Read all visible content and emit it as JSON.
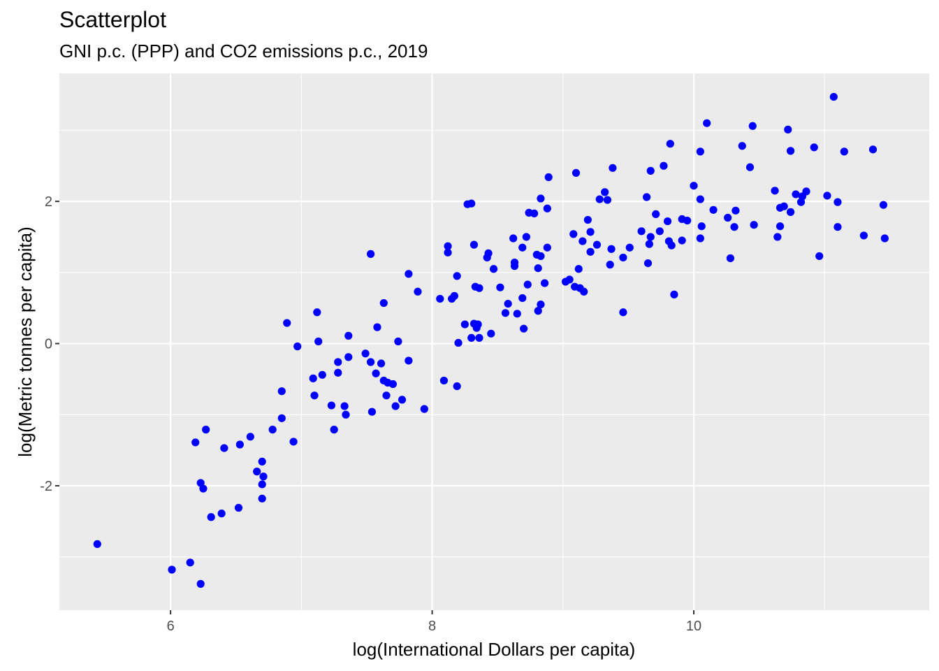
{
  "chart_data": {
    "type": "scatter",
    "title": "Scatterplot",
    "subtitle": "GNI p.c. (PPP) and CO2 emissions p.c., 2019",
    "xlabel": "log(International Dollars per capita)",
    "ylabel": "log(Metric tonnes per capita)",
    "xlim": [
      5.15,
      11.8
    ],
    "ylim": [
      -3.75,
      3.8
    ],
    "x_ticks": [
      6,
      8,
      10
    ],
    "x_tick_labels": [
      "6",
      "8",
      "10"
    ],
    "y_ticks": [
      -2,
      0,
      2
    ],
    "y_tick_labels": [
      "-2",
      "0",
      "2"
    ],
    "grid": true,
    "legend": "none",
    "panel_color": "#ebebeb",
    "grid_color": "#ffffff",
    "point_color": "#0000ff",
    "points": [
      [
        5.44,
        -2.82
      ],
      [
        6.01,
        -3.18
      ],
      [
        6.15,
        -3.08
      ],
      [
        6.23,
        -3.38
      ],
      [
        6.19,
        -1.39
      ],
      [
        6.23,
        -1.96
      ],
      [
        6.25,
        -2.04
      ],
      [
        6.27,
        -1.21
      ],
      [
        6.31,
        -2.44
      ],
      [
        6.39,
        -2.39
      ],
      [
        6.41,
        -1.47
      ],
      [
        6.52,
        -2.31
      ],
      [
        6.53,
        -1.42
      ],
      [
        6.61,
        -1.31
      ],
      [
        6.66,
        -1.8
      ],
      [
        6.7,
        -1.66
      ],
      [
        6.7,
        -1.98
      ],
      [
        6.71,
        -1.87
      ],
      [
        6.7,
        -2.18
      ],
      [
        6.78,
        -1.21
      ],
      [
        6.85,
        -1.05
      ],
      [
        6.85,
        -0.67
      ],
      [
        6.89,
        0.29
      ],
      [
        6.94,
        -1.38
      ],
      [
        6.97,
        -0.04
      ],
      [
        7.09,
        -0.49
      ],
      [
        7.1,
        -0.73
      ],
      [
        7.12,
        0.44
      ],
      [
        7.13,
        0.03
      ],
      [
        7.16,
        -0.44
      ],
      [
        7.23,
        -0.87
      ],
      [
        7.25,
        -1.21
      ],
      [
        7.28,
        -0.26
      ],
      [
        7.28,
        -0.41
      ],
      [
        7.33,
        -0.88
      ],
      [
        7.34,
        -1.0
      ],
      [
        7.36,
        0.11
      ],
      [
        7.36,
        -0.19
      ],
      [
        7.49,
        -0.14
      ],
      [
        7.53,
        -0.26
      ],
      [
        7.54,
        -0.96
      ],
      [
        7.53,
        1.26
      ],
      [
        7.58,
        0.23
      ],
      [
        7.57,
        -0.42
      ],
      [
        7.61,
        -0.28
      ],
      [
        7.63,
        -0.52
      ],
      [
        7.63,
        0.57
      ],
      [
        7.65,
        -0.73
      ],
      [
        7.66,
        -0.55
      ],
      [
        7.7,
        -0.57
      ],
      [
        7.72,
        -0.88
      ],
      [
        7.74,
        0.03
      ],
      [
        7.77,
        -0.79
      ],
      [
        7.82,
        0.98
      ],
      [
        7.82,
        -0.24
      ],
      [
        7.89,
        0.73
      ],
      [
        7.94,
        -0.92
      ],
      [
        8.06,
        0.63
      ],
      [
        8.09,
        -0.52
      ],
      [
        8.12,
        1.37
      ],
      [
        8.12,
        1.28
      ],
      [
        8.15,
        0.63
      ],
      [
        8.17,
        0.67
      ],
      [
        8.19,
        0.95
      ],
      [
        8.19,
        -0.6
      ],
      [
        8.2,
        0.01
      ],
      [
        8.25,
        0.27
      ],
      [
        8.27,
        1.96
      ],
      [
        8.3,
        0.08
      ],
      [
        8.3,
        1.97
      ],
      [
        8.32,
        0.28
      ],
      [
        8.32,
        1.39
      ],
      [
        8.33,
        0.8
      ],
      [
        8.34,
        0.22
      ],
      [
        8.35,
        0.27
      ],
      [
        8.36,
        0.08
      ],
      [
        8.36,
        0.78
      ],
      [
        8.42,
        1.21
      ],
      [
        8.43,
        1.27
      ],
      [
        8.45,
        0.14
      ],
      [
        8.47,
        1.05
      ],
      [
        8.52,
        0.79
      ],
      [
        8.56,
        0.43
      ],
      [
        8.58,
        0.56
      ],
      [
        8.62,
        1.48
      ],
      [
        8.63,
        1.14
      ],
      [
        8.63,
        1.09
      ],
      [
        8.65,
        0.42
      ],
      [
        8.69,
        1.35
      ],
      [
        8.69,
        0.64
      ],
      [
        8.7,
        0.21
      ],
      [
        8.72,
        1.5
      ],
      [
        8.73,
        0.83
      ],
      [
        8.74,
        1.84
      ],
      [
        8.78,
        1.83
      ],
      [
        8.8,
        1.25
      ],
      [
        8.81,
        1.06
      ],
      [
        8.81,
        0.46
      ],
      [
        8.83,
        1.23
      ],
      [
        8.83,
        0.55
      ],
      [
        8.83,
        2.04
      ],
      [
        8.86,
        0.85
      ],
      [
        8.88,
        1.35
      ],
      [
        8.88,
        1.9
      ],
      [
        8.89,
        2.34
      ],
      [
        9.02,
        0.87
      ],
      [
        9.05,
        0.9
      ],
      [
        9.08,
        1.54
      ],
      [
        9.09,
        0.8
      ],
      [
        9.1,
        2.4
      ],
      [
        9.12,
        1.05
      ],
      [
        9.13,
        0.78
      ],
      [
        9.15,
        1.44
      ],
      [
        9.16,
        0.73
      ],
      [
        9.19,
        1.74
      ],
      [
        9.21,
        1.57
      ],
      [
        9.21,
        1.29
      ],
      [
        9.26,
        1.39
      ],
      [
        9.28,
        2.03
      ],
      [
        9.32,
        2.13
      ],
      [
        9.34,
        2.02
      ],
      [
        9.36,
        1.11
      ],
      [
        9.37,
        1.33
      ],
      [
        9.38,
        2.47
      ],
      [
        9.46,
        1.21
      ],
      [
        9.46,
        0.44
      ],
      [
        9.51,
        1.35
      ],
      [
        9.6,
        1.58
      ],
      [
        9.64,
        2.06
      ],
      [
        9.65,
        1.13
      ],
      [
        9.66,
        1.4
      ],
      [
        9.67,
        1.5
      ],
      [
        9.67,
        2.43
      ],
      [
        9.71,
        1.82
      ],
      [
        9.74,
        1.58
      ],
      [
        9.77,
        2.5
      ],
      [
        9.8,
        1.72
      ],
      [
        9.81,
        1.44
      ],
      [
        9.82,
        2.81
      ],
      [
        9.83,
        1.38
      ],
      [
        9.85,
        0.69
      ],
      [
        9.91,
        1.45
      ],
      [
        9.91,
        1.75
      ],
      [
        9.95,
        1.73
      ],
      [
        10.0,
        2.22
      ],
      [
        10.05,
        2.03
      ],
      [
        10.05,
        1.48
      ],
      [
        10.05,
        2.7
      ],
      [
        10.06,
        1.65
      ],
      [
        10.1,
        3.1
      ],
      [
        10.15,
        1.88
      ],
      [
        10.26,
        1.77
      ],
      [
        10.28,
        1.2
      ],
      [
        10.31,
        1.64
      ],
      [
        10.32,
        1.87
      ],
      [
        10.37,
        2.78
      ],
      [
        10.43,
        2.48
      ],
      [
        10.45,
        3.06
      ],
      [
        10.46,
        1.67
      ],
      [
        10.62,
        2.15
      ],
      [
        10.64,
        1.5
      ],
      [
        10.66,
        1.91
      ],
      [
        10.66,
        1.65
      ],
      [
        10.69,
        1.93
      ],
      [
        10.72,
        3.01
      ],
      [
        10.74,
        2.71
      ],
      [
        10.74,
        1.85
      ],
      [
        10.78,
        2.1
      ],
      [
        10.82,
        1.99
      ],
      [
        10.83,
        2.07
      ],
      [
        10.86,
        2.14
      ],
      [
        10.92,
        2.76
      ],
      [
        10.96,
        1.23
      ],
      [
        11.02,
        2.08
      ],
      [
        11.07,
        3.47
      ],
      [
        11.1,
        1.99
      ],
      [
        11.1,
        1.64
      ],
      [
        11.15,
        2.7
      ],
      [
        11.3,
        1.52
      ],
      [
        11.37,
        2.73
      ],
      [
        11.45,
        1.95
      ],
      [
        11.46,
        1.48
      ]
    ]
  }
}
